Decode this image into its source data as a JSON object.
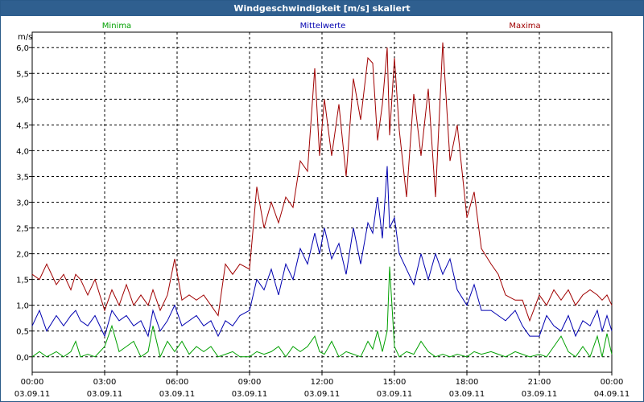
{
  "window": {
    "title": "Windgeschwindigkeit [m/s] skaliert"
  },
  "chart_data": {
    "type": "line",
    "title": "Windgeschwindigkeit [m/s] skaliert",
    "ylabel": "m/s",
    "xlabel": "",
    "ylim": [
      -0.3,
      6.3
    ],
    "xlim": [
      0,
      24
    ],
    "grid": true,
    "legend": "top",
    "y_ticks": [
      "0,0",
      "0,5",
      "1,0",
      "1,5",
      "2,0",
      "2,5",
      "3,0",
      "3,5",
      "4,0",
      "4,5",
      "5,0",
      "5,5",
      "6,0"
    ],
    "y_tick_values": [
      0,
      0.5,
      1,
      1.5,
      2,
      2.5,
      3,
      3.5,
      4,
      4.5,
      5,
      5.5,
      6
    ],
    "x_ticks": [
      {
        "time": "00:00",
        "date": "03.09.11",
        "hour": 0
      },
      {
        "time": "03:00",
        "date": "03.09.11",
        "hour": 3
      },
      {
        "time": "06:00",
        "date": "03.09.11",
        "hour": 6
      },
      {
        "time": "09:00",
        "date": "03.09.11",
        "hour": 9
      },
      {
        "time": "12:00",
        "date": "03.09.11",
        "hour": 12
      },
      {
        "time": "15:00",
        "date": "03.09.11",
        "hour": 15
      },
      {
        "time": "18:00",
        "date": "03.09.11",
        "hour": 18
      },
      {
        "time": "21:00",
        "date": "03.09.11",
        "hour": 21
      },
      {
        "time": "00:00",
        "date": "04.09.11",
        "hour": 24
      }
    ],
    "series": [
      {
        "name": "Minima",
        "color": "#00a000",
        "points": [
          [
            0,
            0
          ],
          [
            0.3,
            0.1
          ],
          [
            0.6,
            0
          ],
          [
            1,
            0.1
          ],
          [
            1.3,
            0
          ],
          [
            1.6,
            0.1
          ],
          [
            1.8,
            0.3
          ],
          [
            2,
            0
          ],
          [
            2.3,
            0.05
          ],
          [
            2.6,
            0
          ],
          [
            3,
            0.2
          ],
          [
            3.3,
            0.6
          ],
          [
            3.6,
            0.1
          ],
          [
            3.9,
            0.2
          ],
          [
            4.2,
            0.3
          ],
          [
            4.5,
            0
          ],
          [
            4.8,
            0.1
          ],
          [
            5,
            0.6
          ],
          [
            5.3,
            0
          ],
          [
            5.6,
            0.3
          ],
          [
            5.9,
            0.1
          ],
          [
            6.2,
            0.3
          ],
          [
            6.5,
            0.05
          ],
          [
            6.8,
            0.2
          ],
          [
            7.1,
            0.1
          ],
          [
            7.4,
            0.2
          ],
          [
            7.7,
            0
          ],
          [
            8,
            0.05
          ],
          [
            8.3,
            0.1
          ],
          [
            8.6,
            0
          ],
          [
            9,
            0
          ],
          [
            9.3,
            0.1
          ],
          [
            9.6,
            0.05
          ],
          [
            9.9,
            0.1
          ],
          [
            10.2,
            0.2
          ],
          [
            10.5,
            0
          ],
          [
            10.8,
            0.2
          ],
          [
            11.1,
            0.1
          ],
          [
            11.4,
            0.2
          ],
          [
            11.7,
            0.4
          ],
          [
            11.9,
            0.1
          ],
          [
            12.1,
            0.05
          ],
          [
            12.4,
            0.3
          ],
          [
            12.7,
            0
          ],
          [
            13,
            0.1
          ],
          [
            13.3,
            0.05
          ],
          [
            13.6,
            0
          ],
          [
            13.9,
            0.3
          ],
          [
            14.1,
            0.15
          ],
          [
            14.3,
            0.5
          ],
          [
            14.5,
            0.1
          ],
          [
            14.7,
            0.5
          ],
          [
            14.8,
            1.75
          ],
          [
            15,
            0.2
          ],
          [
            15.2,
            0
          ],
          [
            15.5,
            0.1
          ],
          [
            15.8,
            0.05
          ],
          [
            16.1,
            0.3
          ],
          [
            16.4,
            0.1
          ],
          [
            16.7,
            0
          ],
          [
            17,
            0.05
          ],
          [
            17.3,
            0
          ],
          [
            17.6,
            0.05
          ],
          [
            18,
            0
          ],
          [
            18.3,
            0.1
          ],
          [
            18.6,
            0.05
          ],
          [
            19,
            0.1
          ],
          [
            19.3,
            0.05
          ],
          [
            19.6,
            0
          ],
          [
            20,
            0.1
          ],
          [
            20.3,
            0.05
          ],
          [
            20.6,
            0
          ],
          [
            21,
            0.05
          ],
          [
            21.3,
            0
          ],
          [
            21.6,
            0.2
          ],
          [
            21.9,
            0.4
          ],
          [
            22.2,
            0.1
          ],
          [
            22.5,
            0
          ],
          [
            22.8,
            0.2
          ],
          [
            23.1,
            0
          ],
          [
            23.4,
            0.4
          ],
          [
            23.6,
            0
          ],
          [
            23.8,
            0.45
          ],
          [
            24,
            0.05
          ]
        ]
      },
      {
        "name": "Mittelwerte",
        "color": "#0000b0",
        "points": [
          [
            0,
            0.6
          ],
          [
            0.3,
            0.9
          ],
          [
            0.6,
            0.5
          ],
          [
            1,
            0.8
          ],
          [
            1.3,
            0.6
          ],
          [
            1.6,
            0.8
          ],
          [
            1.8,
            0.9
          ],
          [
            2,
            0.7
          ],
          [
            2.3,
            0.6
          ],
          [
            2.6,
            0.8
          ],
          [
            3,
            0.4
          ],
          [
            3.3,
            0.9
          ],
          [
            3.6,
            0.7
          ],
          [
            3.9,
            0.8
          ],
          [
            4.2,
            0.6
          ],
          [
            4.5,
            0.7
          ],
          [
            4.8,
            0.4
          ],
          [
            5,
            0.9
          ],
          [
            5.3,
            0.5
          ],
          [
            5.6,
            0.7
          ],
          [
            5.9,
            1
          ],
          [
            6.2,
            0.6
          ],
          [
            6.5,
            0.7
          ],
          [
            6.8,
            0.8
          ],
          [
            7.1,
            0.6
          ],
          [
            7.4,
            0.7
          ],
          [
            7.7,
            0.4
          ],
          [
            8,
            0.7
          ],
          [
            8.3,
            0.6
          ],
          [
            8.6,
            0.8
          ],
          [
            9,
            0.9
          ],
          [
            9.3,
            1.5
          ],
          [
            9.6,
            1.3
          ],
          [
            9.9,
            1.7
          ],
          [
            10.2,
            1.2
          ],
          [
            10.5,
            1.8
          ],
          [
            10.8,
            1.5
          ],
          [
            11.1,
            2.1
          ],
          [
            11.4,
            1.8
          ],
          [
            11.7,
            2.4
          ],
          [
            11.9,
            2.0
          ],
          [
            12.1,
            2.5
          ],
          [
            12.4,
            1.9
          ],
          [
            12.7,
            2.2
          ],
          [
            13,
            1.6
          ],
          [
            13.3,
            2.5
          ],
          [
            13.6,
            1.8
          ],
          [
            13.9,
            2.6
          ],
          [
            14.1,
            2.4
          ],
          [
            14.3,
            3.1
          ],
          [
            14.5,
            2.3
          ],
          [
            14.7,
            3.7
          ],
          [
            14.8,
            2.5
          ],
          [
            15,
            2.7
          ],
          [
            15.2,
            2.0
          ],
          [
            15.5,
            1.7
          ],
          [
            15.8,
            1.4
          ],
          [
            16.1,
            2.0
          ],
          [
            16.4,
            1.5
          ],
          [
            16.7,
            2.0
          ],
          [
            17,
            1.6
          ],
          [
            17.3,
            1.9
          ],
          [
            17.6,
            1.3
          ],
          [
            18,
            1.0
          ],
          [
            18.3,
            1.4
          ],
          [
            18.6,
            0.9
          ],
          [
            19,
            0.9
          ],
          [
            19.3,
            0.8
          ],
          [
            19.6,
            0.7
          ],
          [
            20,
            0.9
          ],
          [
            20.3,
            0.6
          ],
          [
            20.6,
            0.4
          ],
          [
            21,
            0.4
          ],
          [
            21.3,
            0.8
          ],
          [
            21.6,
            0.6
          ],
          [
            21.9,
            0.5
          ],
          [
            22.2,
            0.8
          ],
          [
            22.5,
            0.4
          ],
          [
            22.8,
            0.7
          ],
          [
            23.1,
            0.6
          ],
          [
            23.4,
            0.9
          ],
          [
            23.6,
            0.5
          ],
          [
            23.8,
            0.8
          ],
          [
            24,
            0.5
          ]
        ]
      },
      {
        "name": "Maxima",
        "color": "#a00000",
        "points": [
          [
            0,
            1.6
          ],
          [
            0.3,
            1.5
          ],
          [
            0.6,
            1.8
          ],
          [
            1,
            1.4
          ],
          [
            1.3,
            1.6
          ],
          [
            1.6,
            1.3
          ],
          [
            1.8,
            1.6
          ],
          [
            2,
            1.5
          ],
          [
            2.3,
            1.2
          ],
          [
            2.6,
            1.5
          ],
          [
            3,
            0.9
          ],
          [
            3.3,
            1.3
          ],
          [
            3.6,
            1.0
          ],
          [
            3.9,
            1.4
          ],
          [
            4.2,
            1.0
          ],
          [
            4.5,
            1.2
          ],
          [
            4.8,
            1.0
          ],
          [
            5,
            1.3
          ],
          [
            5.3,
            0.9
          ],
          [
            5.6,
            1.2
          ],
          [
            5.9,
            1.9
          ],
          [
            6.2,
            1.1
          ],
          [
            6.5,
            1.2
          ],
          [
            6.8,
            1.1
          ],
          [
            7.1,
            1.2
          ],
          [
            7.4,
            1.0
          ],
          [
            7.7,
            0.8
          ],
          [
            8,
            1.8
          ],
          [
            8.3,
            1.6
          ],
          [
            8.6,
            1.8
          ],
          [
            9,
            1.7
          ],
          [
            9.3,
            3.3
          ],
          [
            9.6,
            2.5
          ],
          [
            9.9,
            3.0
          ],
          [
            10.2,
            2.6
          ],
          [
            10.5,
            3.1
          ],
          [
            10.8,
            2.9
          ],
          [
            11.1,
            3.8
          ],
          [
            11.4,
            3.6
          ],
          [
            11.7,
            5.6
          ],
          [
            11.9,
            3.9
          ],
          [
            12.1,
            5.0
          ],
          [
            12.4,
            3.9
          ],
          [
            12.7,
            4.9
          ],
          [
            13,
            3.5
          ],
          [
            13.3,
            5.4
          ],
          [
            13.6,
            4.6
          ],
          [
            13.9,
            5.8
          ],
          [
            14.1,
            5.7
          ],
          [
            14.3,
            4.2
          ],
          [
            14.5,
            4.9
          ],
          [
            14.7,
            6.0
          ],
          [
            14.8,
            4.3
          ],
          [
            15,
            5.8
          ],
          [
            15.2,
            4.4
          ],
          [
            15.5,
            3.1
          ],
          [
            15.8,
            5.1
          ],
          [
            16.1,
            3.9
          ],
          [
            16.4,
            5.2
          ],
          [
            16.7,
            3.1
          ],
          [
            17,
            6.1
          ],
          [
            17.3,
            3.8
          ],
          [
            17.6,
            4.5
          ],
          [
            18,
            2.7
          ],
          [
            18.3,
            3.2
          ],
          [
            18.6,
            2.1
          ],
          [
            19,
            1.8
          ],
          [
            19.3,
            1.6
          ],
          [
            19.6,
            1.2
          ],
          [
            20,
            1.1
          ],
          [
            20.3,
            1.1
          ],
          [
            20.6,
            0.7
          ],
          [
            21,
            1.2
          ],
          [
            21.3,
            1.0
          ],
          [
            21.6,
            1.3
          ],
          [
            21.9,
            1.1
          ],
          [
            22.2,
            1.3
          ],
          [
            22.5,
            1.0
          ],
          [
            22.8,
            1.2
          ],
          [
            23.1,
            1.3
          ],
          [
            23.4,
            1.2
          ],
          [
            23.6,
            1.1
          ],
          [
            23.8,
            1.2
          ],
          [
            24,
            1.0
          ]
        ]
      }
    ]
  }
}
